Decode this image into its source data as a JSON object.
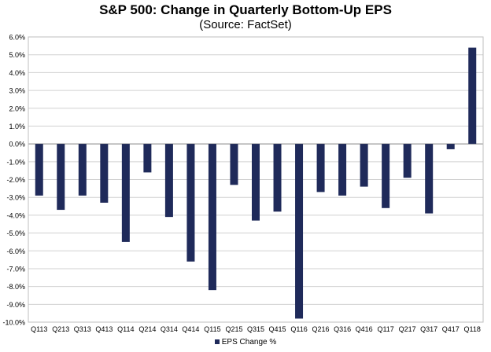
{
  "chart_data": {
    "type": "bar",
    "title": "S&P 500: Change in Quarterly Bottom-Up EPS",
    "subtitle": "(Source: FactSet)",
    "xlabel": "",
    "ylabel": "",
    "ylim": [
      -10.0,
      6.0
    ],
    "ytick_step": 1.0,
    "grid": true,
    "legend": "bottom",
    "categories": [
      "Q113",
      "Q213",
      "Q313",
      "Q413",
      "Q114",
      "Q214",
      "Q314",
      "Q414",
      "Q115",
      "Q215",
      "Q315",
      "Q415",
      "Q116",
      "Q216",
      "Q316",
      "Q416",
      "Q117",
      "Q217",
      "Q317",
      "Q417",
      "Q118"
    ],
    "series": [
      {
        "name": "EPS Change %",
        "color": "#1f2a5a",
        "values": [
          -2.9,
          -3.7,
          -2.9,
          -3.3,
          -5.5,
          -1.6,
          -4.1,
          -6.6,
          -8.2,
          -2.3,
          -4.3,
          -3.8,
          -9.8,
          -2.7,
          -2.9,
          -2.4,
          -3.6,
          -1.9,
          -3.9,
          -0.3,
          5.4
        ]
      }
    ]
  }
}
